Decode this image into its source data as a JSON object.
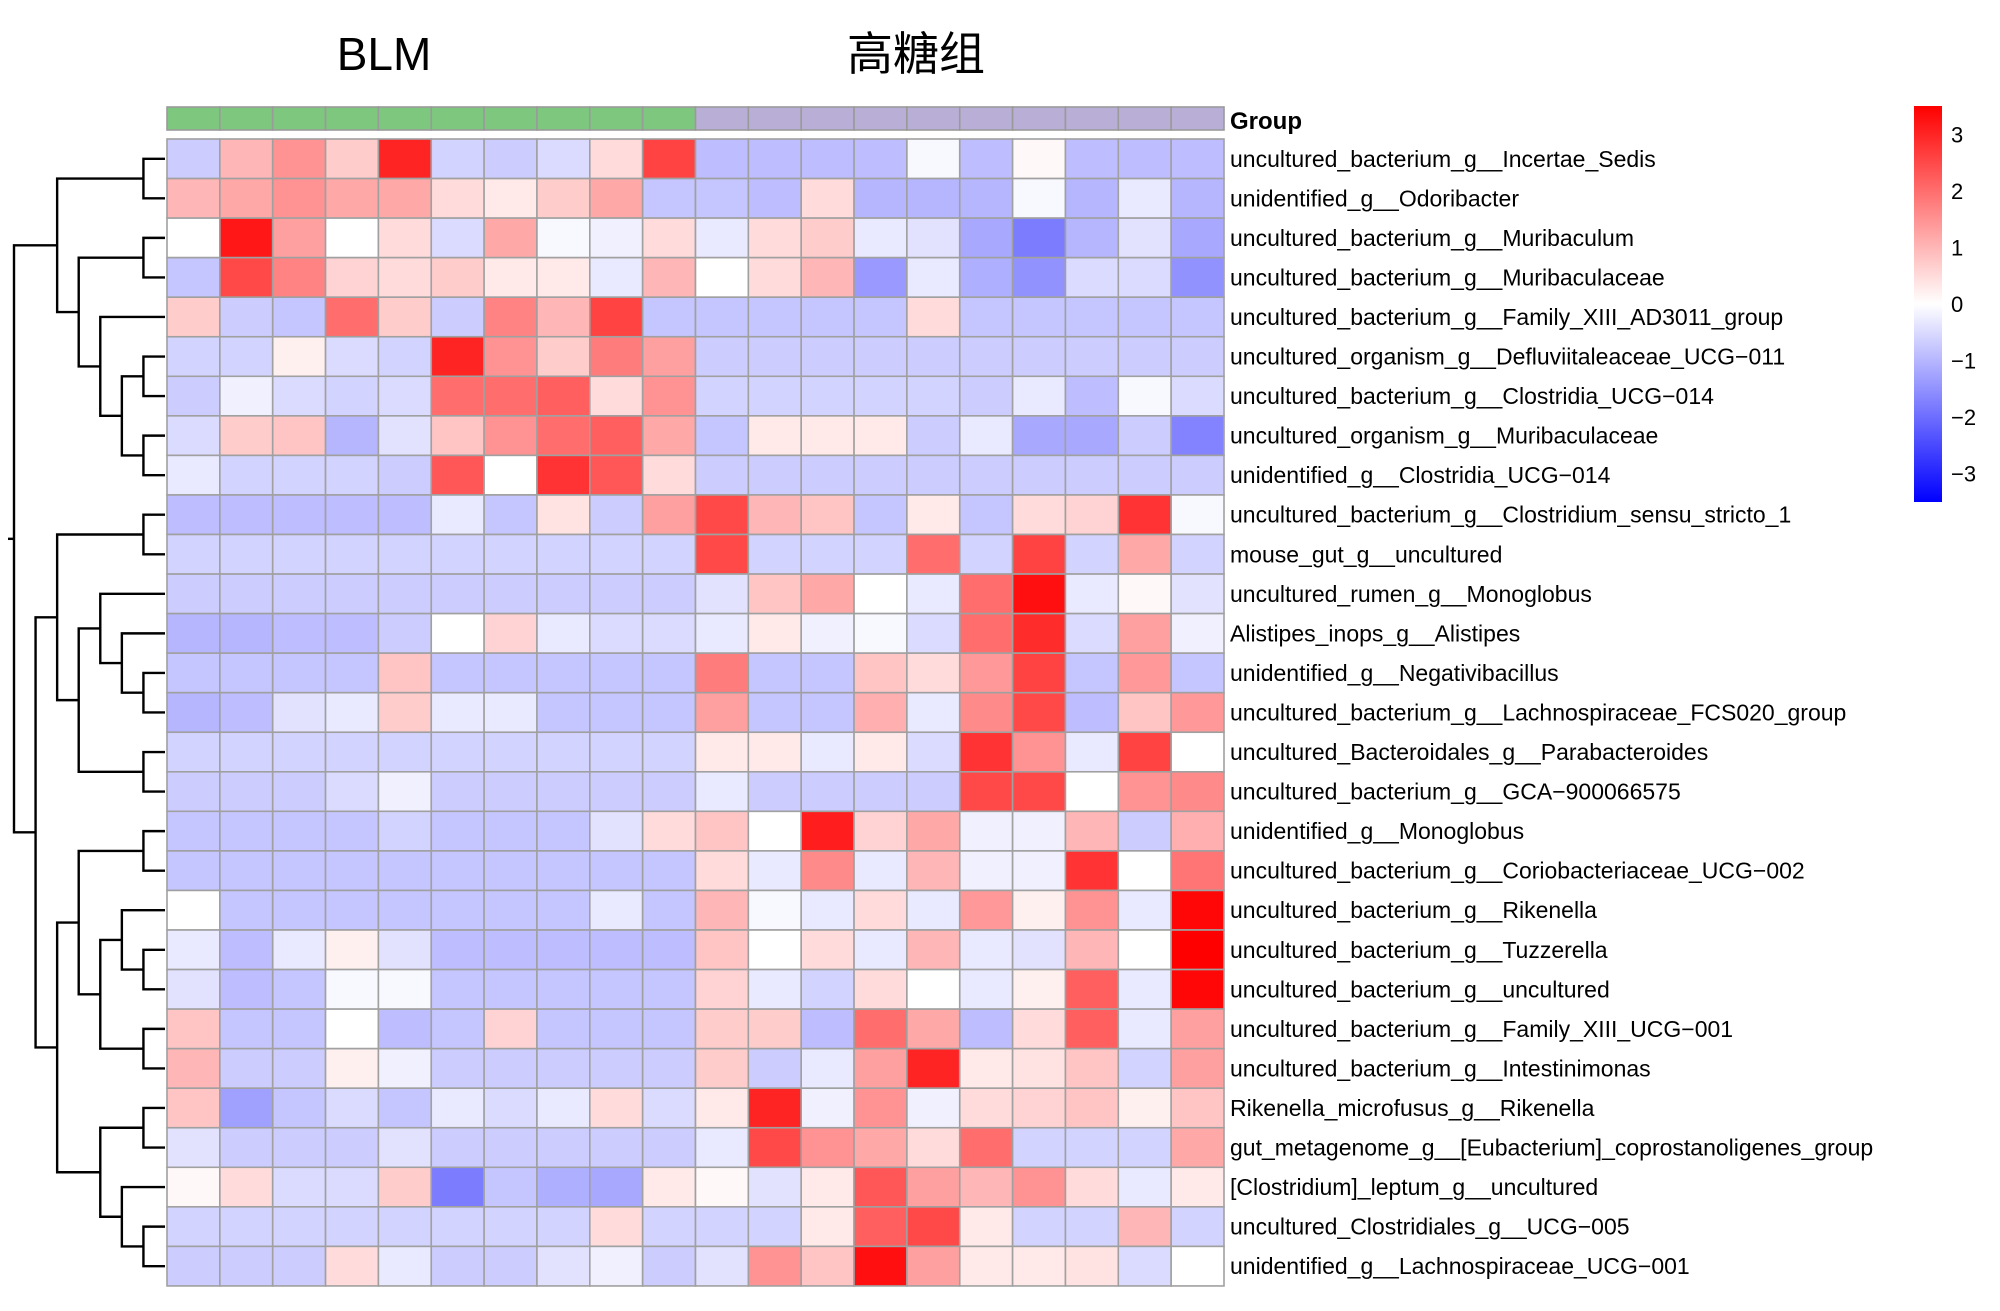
{
  "chart_data": {
    "type": "heatmap",
    "group_titles": [
      "BLM",
      "高糖组"
    ],
    "group_annotation_label": "Group",
    "column_groups": [
      "BLM",
      "BLM",
      "BLM",
      "BLM",
      "BLM",
      "BLM",
      "BLM",
      "BLM",
      "BLM",
      "BLM",
      "高糖组",
      "高糖组",
      "高糖组",
      "高糖组",
      "高糖组",
      "高糖组",
      "高糖组",
      "高糖组",
      "高糖组",
      "高糖组"
    ],
    "group_colors": {
      "BLM": "#7ec77e",
      "高糖组": "#b9aed6"
    },
    "color_scale": {
      "min": -3.5,
      "max": 3.5,
      "low": "#0000ff",
      "mid": "#ffffff",
      "high": "#ff0000"
    },
    "legend_ticks": [
      "3",
      "2",
      "1",
      "0",
      "−1",
      "−2",
      "−3"
    ],
    "rows": [
      "uncultured_bacterium_g__Incertae_Sedis",
      "unidentified_g__Odoribacter",
      "uncultured_bacterium_g__Muribaculum",
      "uncultured_bacterium_g__Muribaculaceae",
      "uncultured_bacterium_g__Family_XIII_AD3011_group",
      "uncultured_organism_g__Defluviitaleaceae_UCG−011",
      "uncultured_bacterium_g__Clostridia_UCG−014",
      "uncultured_organism_g__Muribaculaceae",
      "unidentified_g__Clostridia_UCG−014",
      "uncultured_bacterium_g__Clostridium_sensu_stricto_1",
      "mouse_gut_g__uncultured",
      "uncultured_rumen_g__Monoglobus",
      "Alistipes_inops_g__Alistipes",
      "unidentified_g__Negativibacillus",
      "uncultured_bacterium_g__Lachnospiraceae_FCS020_group",
      "uncultured_Bacteroidales_g__Parabacteroides",
      "uncultured_bacterium_g__GCA−900066575",
      "unidentified_g__Monoglobus",
      "uncultured_bacterium_g__Coriobacteriaceae_UCG−002",
      "uncultured_bacterium_g__Rikenella",
      "uncultured_bacterium_g__Tuzzerella",
      "uncultured_bacterium_g__uncultured",
      "uncultured_bacterium_g__Family_XIII_UCG−001",
      "uncultured_bacterium_g__Intestinimonas",
      "Rikenella_microfusus_g__Rikenella",
      "gut_metagenome_g__[Eubacterium]_coprostanoligenes_group",
      "[Clostridium]_leptum_g__uncultured",
      "uncultured_Clostridiales_g__UCG−005",
      "unidentified_g__Lachnospiraceae_UCG−001"
    ],
    "values": [
      [
        -0.7,
        1.0,
        1.5,
        0.7,
        3.0,
        -0.6,
        -0.7,
        -0.5,
        0.5,
        2.6,
        -0.9,
        -0.9,
        -0.9,
        -0.9,
        -0.1,
        -0.9,
        0.1,
        -0.9,
        -0.9,
        -0.9
      ],
      [
        1.0,
        1.2,
        1.5,
        1.2,
        1.2,
        0.5,
        0.3,
        0.7,
        1.2,
        -0.8,
        -0.8,
        -0.9,
        0.5,
        -1.0,
        -1.0,
        -1.0,
        -0.1,
        -1.0,
        -0.3,
        -1.0
      ],
      [
        0.0,
        3.2,
        1.3,
        0.0,
        0.5,
        -0.5,
        1.2,
        -0.1,
        -0.2,
        0.5,
        -0.3,
        0.5,
        0.7,
        -0.3,
        -0.4,
        -1.2,
        -1.8,
        -1.0,
        -0.4,
        -1.2
      ],
      [
        -0.8,
        2.5,
        1.7,
        0.6,
        0.5,
        0.7,
        0.3,
        0.3,
        -0.3,
        1.0,
        0.0,
        0.5,
        1.0,
        -1.4,
        -0.3,
        -1.1,
        -1.5,
        -0.5,
        -0.5,
        -1.5
      ],
      [
        0.7,
        -0.7,
        -0.8,
        2.0,
        0.7,
        -0.7,
        1.7,
        1.0,
        2.6,
        -0.8,
        -0.8,
        -0.8,
        -0.8,
        -0.8,
        0.5,
        -0.8,
        -0.8,
        -0.8,
        -0.8,
        -0.8
      ],
      [
        -0.6,
        -0.6,
        0.2,
        -0.5,
        -0.6,
        3.0,
        1.5,
        0.7,
        1.8,
        1.3,
        -0.7,
        -0.7,
        -0.7,
        -0.7,
        -0.7,
        -0.7,
        -0.7,
        -0.7,
        -0.7,
        -0.7
      ],
      [
        -0.7,
        -0.2,
        -0.5,
        -0.6,
        -0.5,
        2.0,
        2.0,
        2.2,
        0.5,
        1.5,
        -0.6,
        -0.6,
        -0.6,
        -0.6,
        -0.6,
        -0.7,
        -0.3,
        -0.9,
        -0.1,
        -0.5
      ],
      [
        -0.5,
        0.7,
        0.8,
        -1.0,
        -0.4,
        0.8,
        1.5,
        2.0,
        2.2,
        1.2,
        -0.8,
        0.3,
        0.3,
        0.3,
        -0.7,
        -0.3,
        -1.2,
        -1.2,
        -0.7,
        -1.7
      ],
      [
        -0.3,
        -0.6,
        -0.6,
        -0.6,
        -0.7,
        2.3,
        0.0,
        2.8,
        2.3,
        0.5,
        -0.7,
        -0.7,
        -0.7,
        -0.7,
        -0.7,
        -0.7,
        -0.7,
        -0.7,
        -0.7,
        -0.7
      ],
      [
        -0.9,
        -0.9,
        -0.9,
        -0.9,
        -0.9,
        -0.3,
        -0.8,
        0.4,
        -0.7,
        1.3,
        2.5,
        1.0,
        0.8,
        -0.8,
        0.3,
        -0.8,
        0.5,
        0.6,
        2.8,
        -0.1
      ],
      [
        -0.6,
        -0.6,
        -0.6,
        -0.6,
        -0.6,
        -0.6,
        -0.6,
        -0.6,
        -0.6,
        -0.6,
        2.5,
        -0.6,
        -0.6,
        -0.6,
        2.0,
        -0.6,
        2.6,
        -0.6,
        1.2,
        -0.6
      ],
      [
        -0.7,
        -0.7,
        -0.7,
        -0.7,
        -0.7,
        -0.7,
        -0.7,
        -0.7,
        -0.7,
        -0.7,
        -0.4,
        0.8,
        1.2,
        0.0,
        -0.3,
        2.0,
        3.3,
        -0.3,
        0.1,
        -0.4
      ],
      [
        -1.0,
        -1.0,
        -0.9,
        -0.9,
        -0.7,
        0.0,
        0.6,
        -0.3,
        -0.5,
        -0.5,
        -0.3,
        0.3,
        -0.2,
        -0.1,
        -0.5,
        2.0,
        2.9,
        -0.5,
        1.3,
        -0.2
      ],
      [
        -0.8,
        -0.8,
        -0.8,
        -0.8,
        0.8,
        -0.8,
        -0.8,
        -0.8,
        -0.8,
        -0.8,
        1.8,
        -0.8,
        -0.8,
        0.8,
        0.5,
        1.4,
        2.6,
        -0.8,
        1.4,
        -0.8
      ],
      [
        -1.0,
        -0.9,
        -0.4,
        -0.3,
        0.7,
        -0.3,
        -0.3,
        -0.8,
        -0.8,
        -0.8,
        1.3,
        -0.8,
        -0.8,
        1.1,
        -0.3,
        1.6,
        2.5,
        -0.9,
        0.8,
        1.4
      ],
      [
        -0.6,
        -0.6,
        -0.6,
        -0.6,
        -0.6,
        -0.6,
        -0.6,
        -0.6,
        -0.6,
        -0.6,
        0.3,
        0.3,
        -0.3,
        0.3,
        -0.5,
        2.8,
        1.5,
        -0.3,
        2.6,
        0.0
      ],
      [
        -0.7,
        -0.7,
        -0.7,
        -0.5,
        -0.2,
        -0.7,
        -0.7,
        -0.7,
        -0.7,
        -0.7,
        -0.3,
        -0.7,
        -0.7,
        -0.7,
        -0.7,
        2.5,
        2.5,
        0.0,
        1.5,
        1.6
      ],
      [
        -0.8,
        -0.8,
        -0.8,
        -0.8,
        -0.6,
        -0.8,
        -0.8,
        -0.8,
        -0.4,
        0.5,
        0.8,
        0.0,
        3.1,
        0.6,
        1.2,
        -0.2,
        -0.2,
        1.0,
        -0.7,
        1.1
      ],
      [
        -0.8,
        -0.8,
        -0.8,
        -0.8,
        -0.8,
        -0.8,
        -0.8,
        -0.8,
        -0.8,
        -0.8,
        0.5,
        -0.3,
        1.6,
        -0.3,
        1.0,
        -0.2,
        -0.2,
        2.8,
        0.0,
        1.9
      ],
      [
        0.0,
        -0.8,
        -0.8,
        -0.8,
        -0.8,
        -0.8,
        -0.8,
        -0.8,
        -0.3,
        -0.8,
        1.0,
        -0.1,
        -0.3,
        0.5,
        -0.3,
        1.4,
        0.2,
        1.5,
        -0.3,
        3.4
      ],
      [
        -0.3,
        -0.9,
        -0.3,
        0.2,
        -0.4,
        -0.9,
        -0.9,
        -0.9,
        -0.9,
        -0.9,
        0.8,
        0.0,
        0.5,
        -0.3,
        1.0,
        -0.3,
        -0.4,
        1.0,
        0.0,
        3.5
      ],
      [
        -0.4,
        -0.9,
        -0.8,
        -0.1,
        -0.1,
        -0.8,
        -0.8,
        -0.8,
        -0.8,
        -0.8,
        0.6,
        -0.3,
        -0.6,
        0.5,
        0.0,
        -0.3,
        0.2,
        2.2,
        -0.3,
        3.4
      ],
      [
        0.8,
        -0.8,
        -0.8,
        0.0,
        -0.9,
        -0.8,
        0.6,
        -0.8,
        -0.8,
        -0.8,
        0.7,
        0.7,
        -0.9,
        2.0,
        1.2,
        -0.9,
        0.5,
        2.2,
        -0.3,
        1.3
      ],
      [
        1.0,
        -0.7,
        -0.7,
        0.2,
        -0.2,
        -0.7,
        -0.7,
        -0.7,
        -0.7,
        -0.7,
        0.7,
        -0.7,
        -0.3,
        1.3,
        3.0,
        0.3,
        0.4,
        0.8,
        -0.6,
        1.3
      ],
      [
        0.8,
        -1.3,
        -0.8,
        -0.5,
        -0.8,
        -0.3,
        -0.5,
        -0.3,
        0.5,
        -0.5,
        0.3,
        3.0,
        -0.2,
        1.5,
        -0.2,
        0.5,
        0.6,
        0.8,
        0.2,
        0.8
      ],
      [
        -0.4,
        -0.7,
        -0.7,
        -0.7,
        -0.4,
        -0.7,
        -0.7,
        -0.7,
        -0.7,
        -0.7,
        -0.3,
        2.5,
        1.5,
        1.2,
        0.5,
        2.0,
        -0.6,
        -0.6,
        -0.6,
        1.2
      ],
      [
        0.1,
        0.5,
        -0.5,
        -0.5,
        0.7,
        -1.8,
        -0.8,
        -1.1,
        -1.2,
        0.3,
        0.1,
        -0.4,
        0.3,
        2.3,
        1.3,
        1.0,
        1.5,
        0.5,
        -0.3,
        0.3
      ],
      [
        -0.6,
        -0.6,
        -0.6,
        -0.6,
        -0.6,
        -0.6,
        -0.6,
        -0.6,
        0.5,
        -0.6,
        -0.6,
        -0.6,
        0.3,
        2.2,
        2.5,
        0.3,
        -0.6,
        -0.6,
        1.0,
        -0.6
      ],
      [
        -0.7,
        -0.7,
        -0.7,
        0.5,
        -0.3,
        -0.7,
        -0.7,
        -0.4,
        -0.2,
        -0.7,
        -0.4,
        1.5,
        0.8,
        3.3,
        1.3,
        0.3,
        0.3,
        0.4,
        -0.5,
        0.0
      ]
    ]
  }
}
